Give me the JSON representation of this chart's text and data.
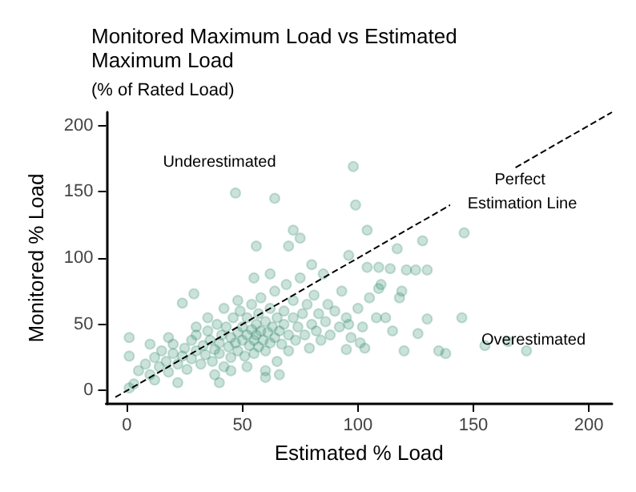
{
  "chart_data": {
    "type": "scatter",
    "title": "Monitored Maximum Load vs Estimated Maximum Load",
    "subtitle": "(% of Rated Load)",
    "xlabel": "Estimated % Load",
    "ylabel": "Monitored % Load",
    "xlim": [
      -9,
      210
    ],
    "ylim": [
      -10,
      210
    ],
    "xticks": [
      0,
      50,
      100,
      150,
      200
    ],
    "yticks": [
      0,
      50,
      100,
      150,
      200
    ],
    "grid": false,
    "annotations": [
      "Underestimated",
      "Overestimated",
      "Perfect Estimation Line"
    ],
    "series": [
      {
        "color": "#2e8b6a",
        "marker": "circle",
        "x": [
          47,
          64,
          98,
          99,
          72,
          75,
          56,
          70,
          24,
          29,
          1,
          1,
          40,
          60,
          22,
          104,
          128,
          146,
          117,
          114,
          121,
          125,
          130,
          145,
          165,
          173,
          155,
          135,
          138,
          120,
          130,
          126,
          112,
          119,
          118,
          109,
          110,
          104,
          109,
          96,
          96,
          101,
          95,
          103,
          115,
          5,
          8,
          10,
          12,
          14,
          15,
          17,
          18,
          20,
          20,
          22,
          24,
          25,
          26,
          28,
          28,
          30,
          30,
          32,
          33,
          34,
          35,
          36,
          37,
          38,
          39,
          40,
          40,
          41,
          42,
          43,
          44,
          45,
          45,
          46,
          47,
          48,
          48,
          49,
          50,
          50,
          51,
          52,
          52,
          53,
          54,
          54,
          55,
          55,
          56,
          56,
          57,
          57,
          58,
          58,
          59,
          60,
          60,
          61,
          62,
          62,
          63,
          64,
          64,
          65,
          65,
          66,
          67,
          68,
          68,
          69,
          70,
          70,
          72,
          72,
          73,
          74,
          75,
          76,
          77,
          78,
          79,
          80,
          81,
          82,
          83,
          84,
          85,
          86,
          87,
          88,
          90,
          92,
          93,
          95,
          97,
          100,
          102,
          105,
          108,
          3,
          1,
          12,
          38,
          45,
          52,
          60,
          66,
          48,
          42,
          35,
          30,
          18,
          10,
          55,
          62,
          80
        ],
        "values": [
          149,
          145,
          169,
          140,
          121,
          115,
          109,
          109,
          66,
          73,
          40,
          26,
          6,
          10,
          6,
          121,
          113,
          119,
          107,
          92,
          91,
          91,
          91,
          55,
          37,
          30,
          34,
          30,
          28,
          30,
          54,
          43,
          55,
          75,
          70,
          77,
          80,
          93,
          93,
          102,
          50,
          36,
          31,
          32,
          45,
          15,
          20,
          12,
          25,
          18,
          30,
          22,
          14,
          28,
          35,
          20,
          26,
          32,
          16,
          38,
          24,
          30,
          42,
          20,
          34,
          27,
          45,
          38,
          22,
          31,
          50,
          36,
          28,
          42,
          18,
          48,
          33,
          40,
          25,
          55,
          36,
          44,
          30,
          60,
          38,
          48,
          26,
          42,
          55,
          34,
          46,
          65,
          38,
          28,
          50,
          42,
          58,
          33,
          45,
          70,
          38,
          52,
          30,
          44,
          62,
          36,
          48,
          40,
          75,
          55,
          22,
          45,
          35,
          60,
          50,
          80,
          42,
          30,
          55,
          68,
          38,
          48,
          85,
          58,
          42,
          65,
          32,
          50,
          72,
          45,
          58,
          38,
          88,
          52,
          65,
          42,
          60,
          48,
          75,
          55,
          40,
          62,
          48,
          70,
          55,
          5,
          2,
          8,
          12,
          15,
          18,
          15,
          12,
          68,
          62,
          55,
          48,
          40,
          35,
          85,
          88,
          95
        ]
      },
      {
        "type": "line",
        "color": "#000000",
        "marker": "none",
        "line_style": "dashed",
        "x": [
          -5,
          210
        ],
        "values": [
          -5,
          210
        ]
      }
    ]
  }
}
